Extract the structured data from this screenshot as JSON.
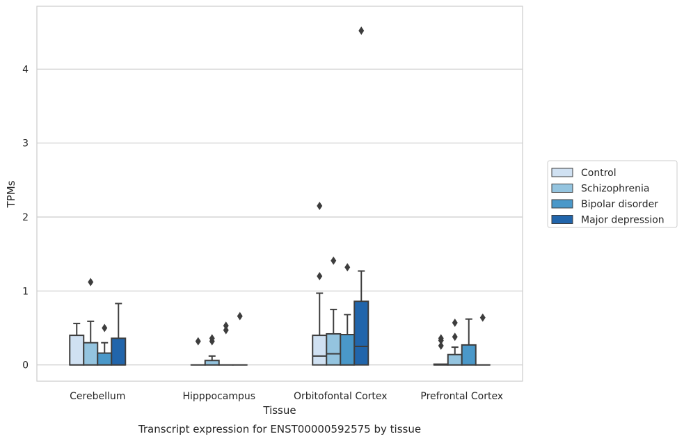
{
  "chart_data": {
    "type": "box",
    "caption": "Transcript expression for ENST00000592575 by tissue",
    "xlabel": "Tissue",
    "ylabel": "TPMs",
    "ylim": [
      -0.22,
      4.85
    ],
    "yticks": [
      0,
      1,
      2,
      3,
      4
    ],
    "grid": "horizontal",
    "legend_position": "right",
    "categories": [
      "Cerebellum",
      "Hipppocampus",
      "Orbitofontal Cortex",
      "Prefrontal Cortex"
    ],
    "series": [
      {
        "name": "Control",
        "color": "#d0e1f2",
        "boxes": [
          {
            "q1": 0.0,
            "median": 0.0,
            "q3": 0.4,
            "whisker_low": 0.0,
            "whisker_high": 0.56,
            "outliers": []
          },
          {
            "q1": 0.0,
            "median": 0.0,
            "q3": 0.0,
            "whisker_low": 0.0,
            "whisker_high": 0.0,
            "outliers": [
              0.32
            ]
          },
          {
            "q1": 0.0,
            "median": 0.12,
            "q3": 0.4,
            "whisker_low": 0.0,
            "whisker_high": 0.97,
            "outliers": [
              1.2,
              2.15
            ]
          },
          {
            "q1": 0.0,
            "median": 0.0,
            "q3": 0.01,
            "whisker_low": 0.0,
            "whisker_high": 0.01,
            "outliers": [
              0.26,
              0.33,
              0.36
            ]
          }
        ]
      },
      {
        "name": "Schizophrenia",
        "color": "#94c4df",
        "boxes": [
          {
            "q1": 0.0,
            "median": 0.0,
            "q3": 0.3,
            "whisker_low": 0.0,
            "whisker_high": 0.59,
            "outliers": [
              1.12
            ]
          },
          {
            "q1": 0.0,
            "median": 0.0,
            "q3": 0.06,
            "whisker_low": 0.0,
            "whisker_high": 0.12,
            "outliers": [
              0.32,
              0.36
            ]
          },
          {
            "q1": 0.0,
            "median": 0.15,
            "q3": 0.42,
            "whisker_low": 0.0,
            "whisker_high": 0.75,
            "outliers": [
              1.41
            ]
          },
          {
            "q1": 0.0,
            "median": 0.0,
            "q3": 0.14,
            "whisker_low": 0.0,
            "whisker_high": 0.24,
            "outliers": [
              0.38,
              0.57
            ]
          }
        ]
      },
      {
        "name": "Bipolar disorder",
        "color": "#4a98c9",
        "boxes": [
          {
            "q1": 0.0,
            "median": 0.0,
            "q3": 0.16,
            "whisker_low": 0.0,
            "whisker_high": 0.3,
            "outliers": [
              0.5
            ]
          },
          {
            "q1": 0.0,
            "median": 0.0,
            "q3": 0.0,
            "whisker_low": 0.0,
            "whisker_high": 0.0,
            "outliers": [
              0.47,
              0.53
            ]
          },
          {
            "q1": 0.0,
            "median": 0.0,
            "q3": 0.41,
            "whisker_low": 0.0,
            "whisker_high": 0.68,
            "outliers": [
              1.32
            ]
          },
          {
            "q1": 0.0,
            "median": 0.0,
            "q3": 0.27,
            "whisker_low": 0.0,
            "whisker_high": 0.62,
            "outliers": []
          }
        ]
      },
      {
        "name": "Major depression",
        "color": "#2165ab",
        "boxes": [
          {
            "q1": 0.0,
            "median": 0.0,
            "q3": 0.36,
            "whisker_low": 0.0,
            "whisker_high": 0.83,
            "outliers": []
          },
          {
            "q1": 0.0,
            "median": 0.0,
            "q3": 0.0,
            "whisker_low": 0.0,
            "whisker_high": 0.0,
            "outliers": [
              0.66
            ]
          },
          {
            "q1": 0.0,
            "median": 0.25,
            "q3": 0.86,
            "whisker_low": 0.0,
            "whisker_high": 1.27,
            "outliers": [
              4.52
            ]
          },
          {
            "q1": 0.0,
            "median": 0.0,
            "q3": 0.0,
            "whisker_low": 0.0,
            "whisker_high": 0.0,
            "outliers": [
              0.64
            ]
          }
        ]
      }
    ]
  }
}
